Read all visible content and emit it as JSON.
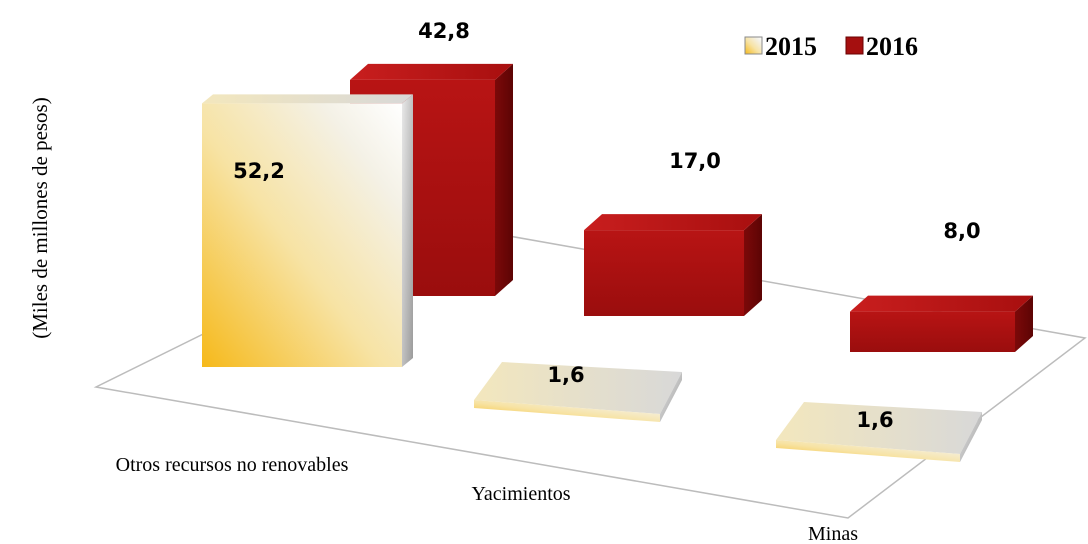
{
  "chart_data": {
    "type": "bar",
    "categories": [
      "Otros recursos no renovables",
      "Yacimientos",
      "Minas"
    ],
    "series": [
      {
        "name": "2015",
        "values": [
          52.2,
          1.6,
          1.6
        ],
        "labels": [
          "52,2",
          "1,6",
          "1,6"
        ]
      },
      {
        "name": "2016",
        "values": [
          42.8,
          17.0,
          8.0
        ],
        "labels": [
          "42,8",
          "17,0",
          "8,0"
        ]
      }
    ],
    "ylabel": "(Miles  de  millones  de  pesos)",
    "xlabel": "",
    "title": "",
    "style": "3d",
    "legend": "top-right",
    "grid": false,
    "colors": {
      "2015": "#f2c530",
      "2016": "#a50f0f"
    }
  }
}
